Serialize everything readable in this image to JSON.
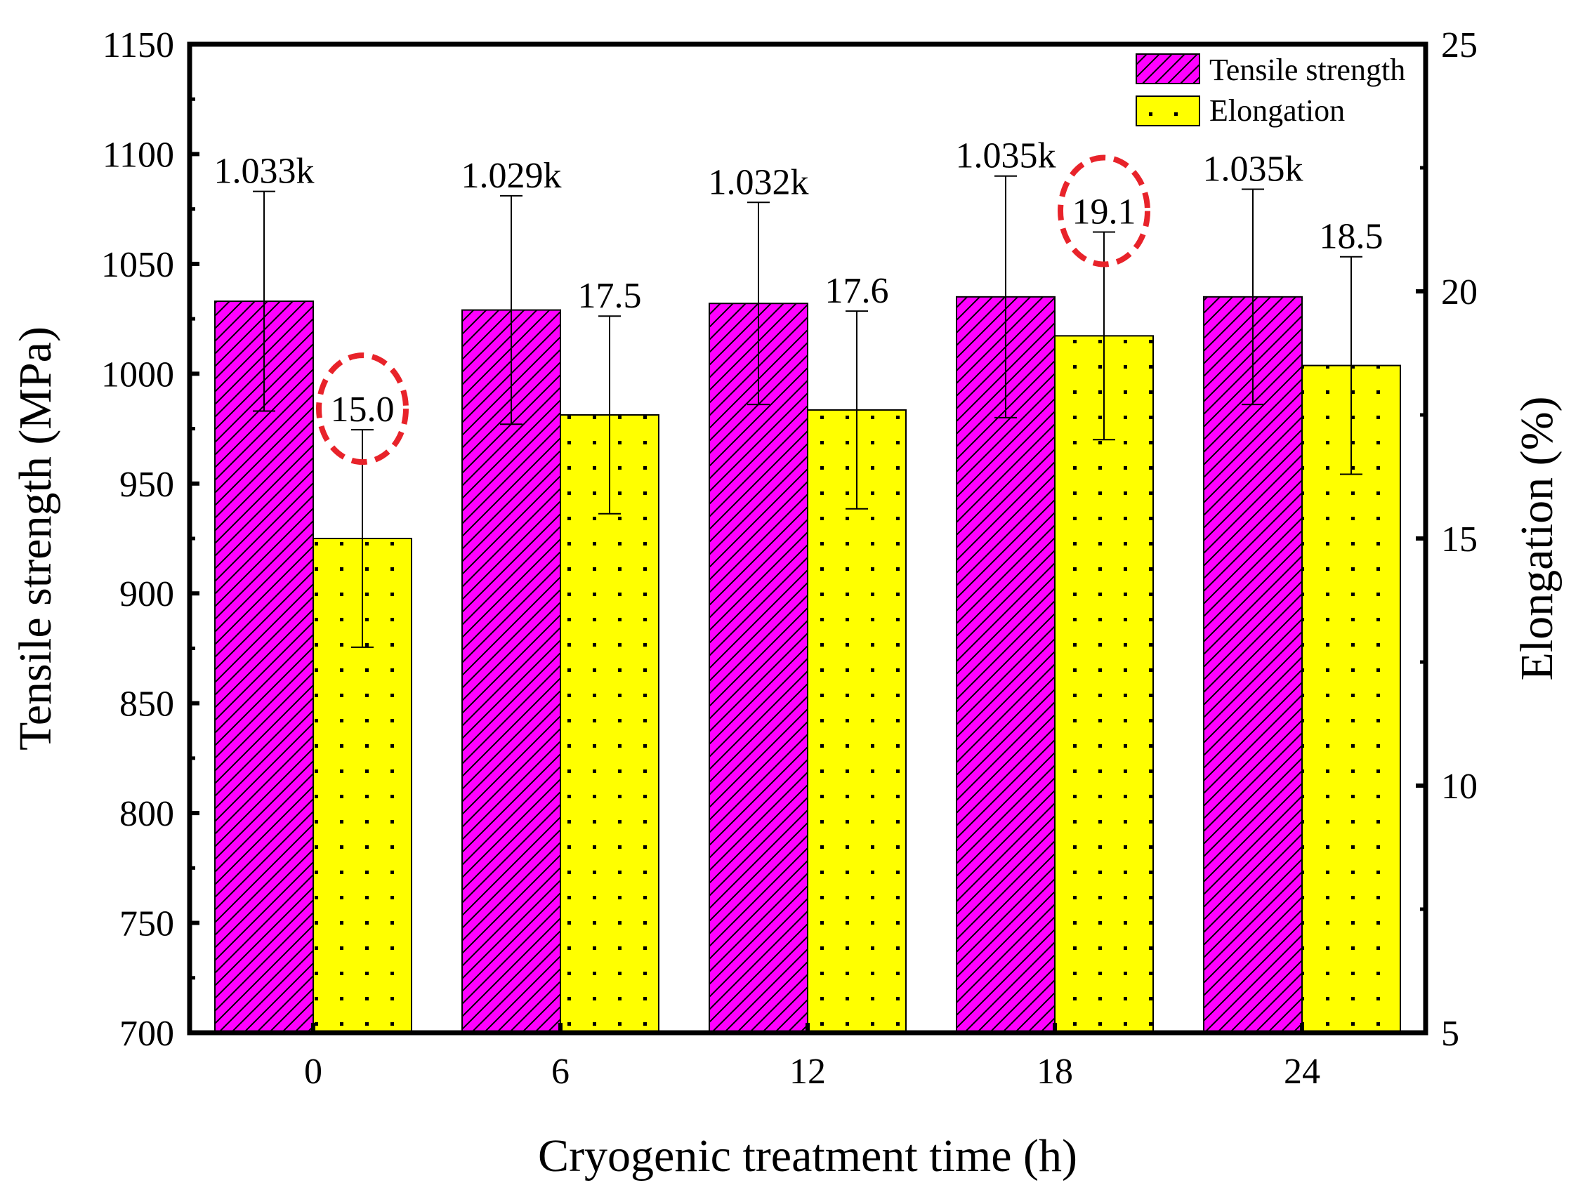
{
  "chart_data": {
    "type": "bar",
    "categories": [
      "0",
      "6",
      "12",
      "18",
      "24"
    ],
    "xlabel": "Cryogenic treatment time (h)",
    "ylabel": "Tensile strength (MPa)",
    "y2label": "Elongation (%)",
    "ylim": [
      700,
      1150
    ],
    "yticks": [
      700,
      750,
      800,
      850,
      900,
      950,
      1000,
      1050,
      1100,
      1150
    ],
    "y2lim": [
      5,
      25
    ],
    "y2ticks": [
      5,
      10,
      15,
      20,
      25
    ],
    "grid": false,
    "legend_position": "top-right",
    "series": [
      {
        "name": "Tensile strength",
        "axis": "left",
        "color": "#ff00ff",
        "pattern": "diagonal-hatch",
        "values": [
          1033,
          1029,
          1032,
          1035,
          1035
        ],
        "errors": [
          50,
          52,
          46,
          55,
          49
        ],
        "labels": [
          "1.033k",
          "1.029k",
          "1.032k",
          "1.035k",
          "1.035k"
        ]
      },
      {
        "name": "Elongation",
        "axis": "right",
        "color": "#ffff00",
        "pattern": "dots",
        "values": [
          15.0,
          17.5,
          17.6,
          19.1,
          18.5
        ],
        "errors": [
          2.2,
          2.0,
          2.0,
          2.1,
          2.2
        ],
        "labels": [
          "15.0",
          "17.5",
          "17.6",
          "19.1",
          "18.5"
        ]
      }
    ],
    "highlighted": [
      {
        "series": 1,
        "index": 0,
        "color": "#e8232a",
        "style": "dashed-circle"
      },
      {
        "series": 1,
        "index": 3,
        "color": "#e8232a",
        "style": "dashed-circle"
      }
    ]
  }
}
